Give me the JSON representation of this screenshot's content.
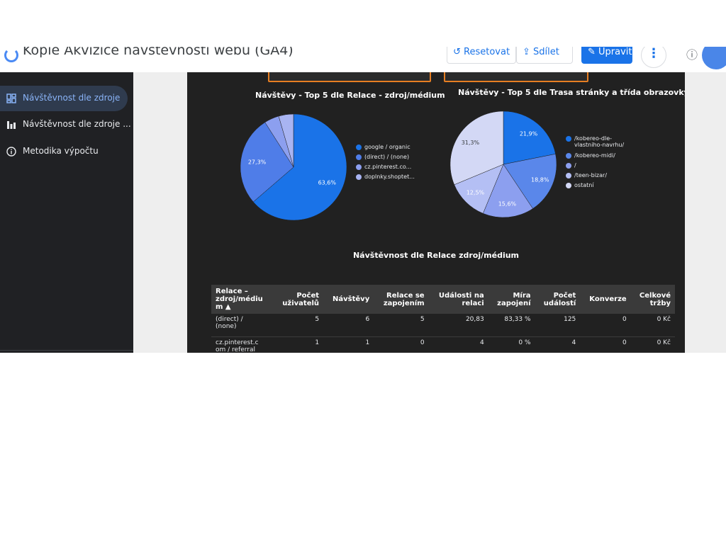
{
  "header": {
    "title": "Kopie Akvizice návštěvnosti webu (GA4)",
    "reset_label": "Resetovat",
    "share_label": "Sdílet",
    "edit_label": "Upravit",
    "more_icon": "more-vert-icon",
    "info_icon": "info-icon"
  },
  "sidebar": {
    "items": [
      {
        "label": "Návštěvnost dle zdroje",
        "icon": "dashboard-icon",
        "active": true
      },
      {
        "label": "Návštěvnost dle zdroje ...",
        "icon": "bar-chart-icon",
        "active": false
      },
      {
        "label": "Metodika výpočtu",
        "icon": "info-icon",
        "active": false
      }
    ]
  },
  "colors": {
    "blue": "#1a73e8",
    "blue2": "#4f7de8",
    "blue3": "#8c9fef",
    "blue4": "#a8b4f2",
    "light": "#d3d8f5",
    "filter_border": "#e67e22",
    "canvas": "#212121"
  },
  "chart_data": [
    {
      "type": "pie",
      "title": "Návštěvy - Top 5 dle Relace - zdroj/médium",
      "labels": [
        "google / organic",
        "(direct) / (none)",
        "cz.pinterest.co...",
        "doplnky.shoptet..."
      ],
      "values": [
        63.6,
        27.3,
        4.5,
        4.5
      ],
      "data_labels": [
        "63,6%",
        "27,3%",
        "",
        ""
      ],
      "colors": [
        "#1a73e8",
        "#4f7de8",
        "#8c9fef",
        "#a8b4f2"
      ],
      "legend": "right"
    },
    {
      "type": "pie",
      "title": "Návštěvy - Top 5 dle Trasa stránky a třída obrazovky",
      "labels": [
        "/kobereo-dle-vlastniho-navrhu/",
        "/kobereo-midi/",
        "/",
        "/teen-bizar/",
        "ostatní"
      ],
      "legend_lines": [
        [
          "/kobereo-dle-",
          "vlastniho-navrhu/"
        ],
        [
          "/kobereo-midi/"
        ],
        [
          "/"
        ],
        [
          "/teen-bizar/"
        ],
        [
          "ostatní"
        ]
      ],
      "values": [
        21.9,
        18.8,
        15.6,
        12.5,
        31.3
      ],
      "data_labels": [
        "21,9%",
        "18,8%",
        "15,6%",
        "12,5%",
        "31,3%"
      ],
      "colors": [
        "#1a73e8",
        "#5a87ea",
        "#8c9fef",
        "#b4bff4",
        "#d3d8f5"
      ],
      "legend": "right"
    }
  ],
  "table": {
    "title": "Návštěvnost dle Relace zdroj/médium",
    "columns": [
      [
        "Relace –",
        "zdroj/médiu",
        "m ▲"
      ],
      [
        "Počet",
        "uživatelů"
      ],
      [
        "Návštěvy"
      ],
      [
        "Relace se",
        "zapojením"
      ],
      [
        "Události na",
        "relaci"
      ],
      [
        "Míra",
        "zapojení"
      ],
      [
        "Počet",
        "událostí"
      ],
      [
        "Konverze"
      ],
      [
        "Celkové",
        "tržby"
      ]
    ],
    "rows": [
      [
        [
          "(direct) /",
          "(none)"
        ],
        "5",
        "6",
        "5",
        "20,83",
        "83,33 %",
        "125",
        "0",
        "0 Kč"
      ],
      [
        [
          "cz.pinterest.c",
          "om / referral"
        ],
        "1",
        "1",
        "0",
        "4",
        "0 %",
        "4",
        "0",
        "0 Kč"
      ]
    ]
  }
}
